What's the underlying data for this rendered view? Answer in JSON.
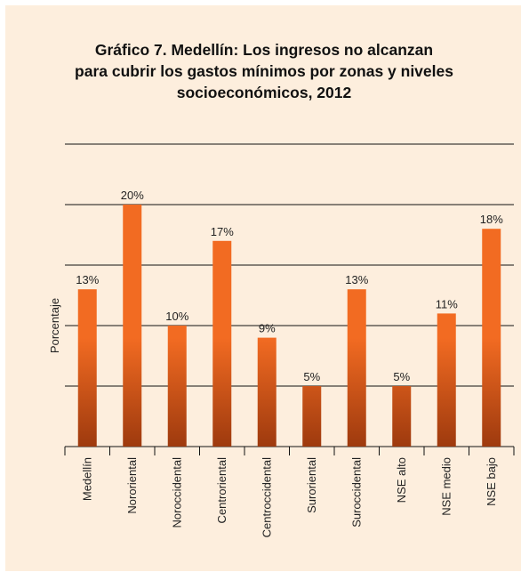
{
  "chart_data": {
    "type": "bar",
    "title": [
      "Gráfico 7. Medellín: Los ingresos no alcanzan",
      "para cubrir los gastos mínimos por zonas y niveles",
      "socioeconómicos, 2012"
    ],
    "y_label": "Porcentaje",
    "categories": [
      "Medellín",
      "Nororiental",
      "Noroccidental",
      "Centroriental",
      "Centroccidental",
      "Suroriental",
      "Suroccidental",
      "NSE alto",
      "NSE medio",
      "NSE bajo"
    ],
    "values": [
      13,
      20,
      10,
      17,
      9,
      5,
      13,
      5,
      11,
      18
    ],
    "value_labels": [
      "13%",
      "20%",
      "10%",
      "17%",
      "9%",
      "5%",
      "13%",
      "5%",
      "11%",
      "18%"
    ],
    "color": "#f26b22",
    "ylim": [
      0,
      25
    ],
    "yticks": [
      0,
      5,
      10,
      15,
      20,
      25
    ],
    "grid": true
  }
}
